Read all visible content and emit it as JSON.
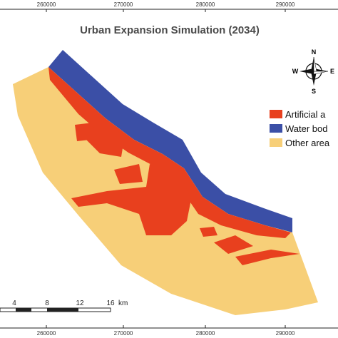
{
  "title": "Urban Expansion Simulation (2034)",
  "grid_labels": {
    "top": [
      "260000",
      "270000",
      "280000",
      "290000"
    ],
    "bottom": [
      "260000",
      "270000",
      "280000",
      "290000"
    ]
  },
  "compass": {
    "n": "N",
    "s": "S",
    "e": "E",
    "w": "W"
  },
  "legend": [
    "Artificial a",
    "Water bod",
    "Other area"
  ],
  "scale_bar": {
    "labels": [
      "4",
      "8",
      "12",
      "16"
    ],
    "unit": "km"
  }
}
